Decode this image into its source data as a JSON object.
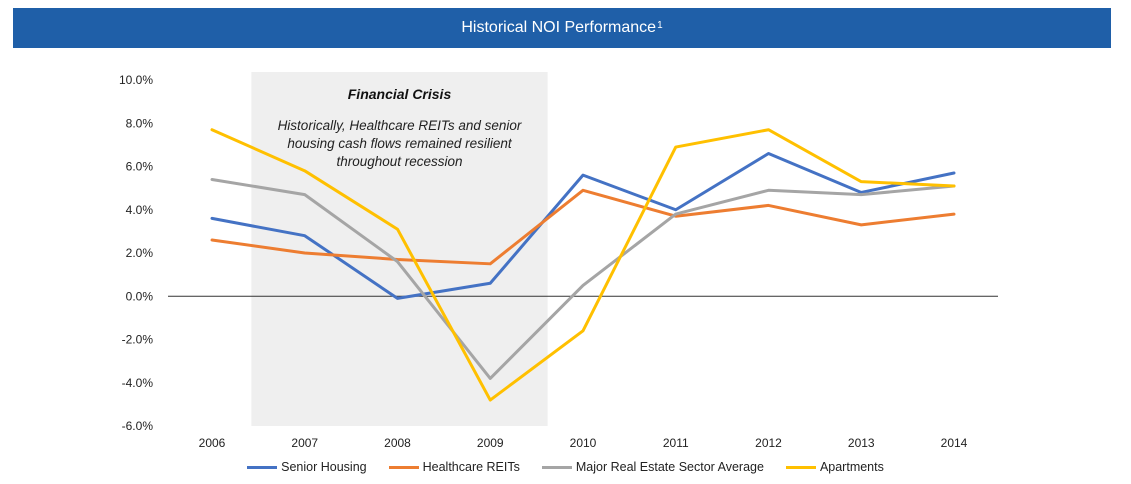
{
  "header": {
    "title": "Historical NOI Performance",
    "superscript": "1",
    "background": "#1f5fa8"
  },
  "annotation": {
    "title": "Financial Crisis",
    "lines": [
      "Historically, Healthcare REITs and senior",
      "housing cash flows remained resilient",
      "throughout recession"
    ],
    "shade_range": [
      "2006",
      "2009"
    ],
    "shade_color": "#efefef"
  },
  "chart_data": {
    "type": "line",
    "title": "Historical NOI Performance",
    "x": [
      "2006",
      "2007",
      "2008",
      "2009",
      "2010",
      "2011",
      "2012",
      "2013",
      "2014"
    ],
    "ylim": [
      -6.0,
      10.0
    ],
    "yticks": [
      "10.0%",
      "8.0%",
      "6.0%",
      "4.0%",
      "2.0%",
      "0.0%",
      "-2.0%",
      "-4.0%",
      "-6.0%"
    ],
    "ytick_values": [
      10,
      8,
      6,
      4,
      2,
      0,
      -2,
      -4,
      -6
    ],
    "grid": false,
    "zero_line": true,
    "legend_position": "bottom",
    "series": [
      {
        "name": "Senior Housing",
        "color": "#4472c4",
        "values": [
          3.6,
          2.8,
          -0.1,
          0.6,
          5.6,
          4.0,
          6.6,
          4.8,
          5.7
        ]
      },
      {
        "name": "Healthcare REITs",
        "color": "#ed7d31",
        "values": [
          2.6,
          2.0,
          1.7,
          1.5,
          4.9,
          3.7,
          4.2,
          3.3,
          3.8
        ]
      },
      {
        "name": "Major Real Estate Sector Average",
        "color": "#a5a5a5",
        "values": [
          5.4,
          4.7,
          1.6,
          -3.8,
          0.5,
          3.8,
          4.9,
          4.7,
          5.1
        ]
      },
      {
        "name": "Apartments",
        "color": "#ffc000",
        "values": [
          7.7,
          5.8,
          3.1,
          -4.8,
          -1.6,
          6.9,
          7.7,
          5.3,
          5.1
        ]
      }
    ]
  }
}
